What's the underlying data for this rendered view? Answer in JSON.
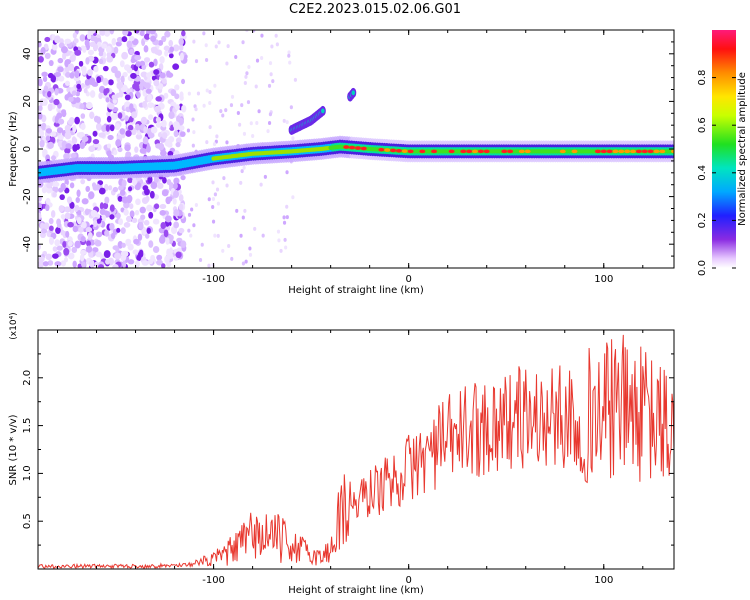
{
  "title": "C2E2.2023.015.02.06.G01",
  "chart_data": [
    {
      "type": "heatmap",
      "xlabel": "Height of straight line (km)",
      "ylabel": "Frequency (Hz)",
      "xlim": [
        -190,
        136
      ],
      "ylim": [
        -50,
        50
      ],
      "xticks": [
        -100,
        0,
        100
      ],
      "yticks": [
        -40,
        -20,
        0,
        20,
        40
      ],
      "colorbar": {
        "label": "Normalized spectral amplitude",
        "ticks": [
          0.0,
          0.2,
          0.4,
          0.6,
          0.8
        ],
        "range": [
          0,
          1
        ]
      },
      "traces": [
        {
          "x": [
            -190,
            -170,
            -150,
            -120,
            -100,
            -80,
            -60,
            -45,
            -35,
            -20,
            0,
            20,
            60,
            100,
            136
          ],
          "y": [
            -10,
            -8,
            -8,
            -7,
            -4,
            -2,
            -1,
            0,
            1,
            0,
            -1,
            -1,
            -1,
            -1,
            -1
          ]
        },
        {
          "x": [
            -60,
            -50,
            -44
          ],
          "y": [
            8,
            12,
            16
          ]
        },
        {
          "x": [
            -30,
            -28
          ],
          "y": [
            22,
            24
          ]
        }
      ],
      "grid": false
    },
    {
      "type": "line",
      "xlabel": "Height of straight line (km)",
      "ylabel": "SNR (10 * v/v)",
      "multiplier": "(x10⁴)",
      "xlim": [
        -190,
        136
      ],
      "ylim": [
        0,
        2.5
      ],
      "xticks": [
        -100,
        0,
        100
      ],
      "yticks": [
        0.5,
        1.0,
        1.5,
        2.0
      ],
      "series": [
        {
          "color": "#e8382f",
          "x": [
            -190,
            -160,
            -130,
            -110,
            -100,
            -90,
            -80,
            -70,
            -60,
            -50,
            -45,
            -40,
            -35,
            -30,
            -25,
            -20,
            -10,
            0,
            10,
            20,
            30,
            40,
            50,
            60,
            70,
            80,
            90,
            100,
            110,
            120,
            130,
            136
          ],
          "y": [
            0.03,
            0.03,
            0.03,
            0.05,
            0.1,
            0.2,
            0.35,
            0.35,
            0.25,
            0.15,
            0.12,
            0.2,
            0.6,
            0.7,
            0.7,
            0.8,
            0.9,
            1.05,
            1.2,
            1.35,
            1.45,
            1.5,
            1.55,
            1.6,
            1.55,
            1.6,
            1.6,
            1.65,
            1.7,
            1.6,
            1.5,
            1.4
          ]
        }
      ],
      "grid": false
    }
  ]
}
